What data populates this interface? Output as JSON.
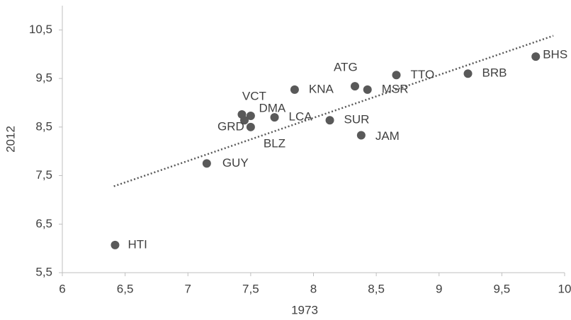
{
  "chart_data": {
    "type": "scatter",
    "x_label": "1973",
    "y_label": "2012",
    "series": [
      {
        "color": "#595959",
        "labels": [
          "HTI",
          "GUY",
          "DMA",
          "VCT",
          "GRD",
          "BLZ",
          "LCA",
          "KNA",
          "SUR",
          "JAM",
          "ATG",
          "MSR",
          "TTO",
          "BRB",
          "BHS"
        ],
        "x": [
          6.42,
          7.15,
          7.43,
          7.5,
          7.45,
          7.5,
          7.69,
          7.85,
          8.13,
          8.38,
          8.33,
          8.43,
          8.66,
          9.23,
          9.77
        ],
        "values": [
          6.07,
          7.75,
          8.76,
          8.73,
          8.64,
          8.5,
          8.7,
          9.27,
          8.64,
          8.33,
          9.34,
          9.27,
          9.57,
          9.6,
          9.95
        ]
      }
    ],
    "trendline": {
      "x": [
        6.41,
        9.91
      ],
      "y": [
        7.28,
        10.38
      ],
      "color": "#595959"
    },
    "xlim": [
      6,
      10
    ],
    "ylim": [
      5.5,
      11
    ],
    "xticks": [
      6,
      {
        "value": 6.5,
        "label": "6,5"
      },
      7,
      {
        "value": 7.5,
        "label": "7,5"
      },
      8,
      {
        "value": 8.5,
        "label": "8,5"
      },
      9,
      {
        "value": 9.5,
        "label": "9,5"
      },
      10
    ],
    "yticks": [
      {
        "value": 5.5,
        "label": "5,5"
      },
      {
        "value": 6.5,
        "label": "6,5"
      },
      {
        "value": 7.5,
        "label": "7,5"
      },
      {
        "value": 8.5,
        "label": "8,5"
      },
      {
        "value": 9.5,
        "label": "9,5"
      },
      {
        "value": 10.5,
        "label": "10,5"
      }
    ]
  }
}
